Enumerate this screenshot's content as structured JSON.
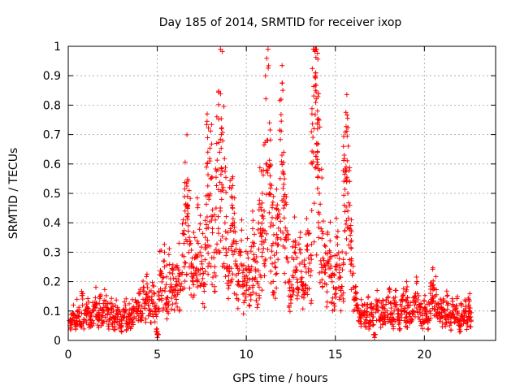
{
  "chart_data": {
    "type": "scatter",
    "title": "Day 185 of 2014, SRMTID for receiver ixop",
    "xlabel": "GPS time / hours",
    "ylabel": "SRMTID / TECUs",
    "xlim": [
      0,
      24
    ],
    "ylim": [
      0,
      1
    ],
    "xticks": [
      0,
      5,
      10,
      15,
      20
    ],
    "yticks": [
      0,
      0.1,
      0.2,
      0.3,
      0.4,
      0.5,
      0.6,
      0.7,
      0.8,
      0.9,
      1
    ],
    "grid": true,
    "marker": "plus",
    "color": "#ff0000",
    "series": [
      {
        "name": "SRMTID",
        "points": [
          [
            0.1,
            0.05
          ],
          [
            0.2,
            0.07
          ],
          [
            0.3,
            0.09
          ],
          [
            0.4,
            0.06
          ],
          [
            0.5,
            0.1
          ],
          [
            0.6,
            0.08
          ],
          [
            0.7,
            0.05
          ],
          [
            0.8,
            0.12
          ],
          [
            0.9,
            0.07
          ],
          [
            1.0,
            0.09
          ],
          [
            1.1,
            0.11
          ],
          [
            1.2,
            0.08
          ],
          [
            1.3,
            0.06
          ],
          [
            1.4,
            0.1
          ],
          [
            1.5,
            0.13
          ],
          [
            1.6,
            0.09
          ],
          [
            1.7,
            0.07
          ],
          [
            1.8,
            0.11
          ],
          [
            1.9,
            0.08
          ],
          [
            2.0,
            0.1
          ],
          [
            2.1,
            0.12
          ],
          [
            2.2,
            0.09
          ],
          [
            2.3,
            0.07
          ],
          [
            2.4,
            0.11
          ],
          [
            2.5,
            0.08
          ],
          [
            2.6,
            0.06
          ],
          [
            2.7,
            0.1
          ],
          [
            2.8,
            0.09
          ],
          [
            2.9,
            0.07
          ],
          [
            3.0,
            0.05
          ],
          [
            3.1,
            0.08
          ],
          [
            3.2,
            0.1
          ],
          [
            3.3,
            0.06
          ],
          [
            3.4,
            0.09
          ],
          [
            3.5,
            0.07
          ],
          [
            3.6,
            0.11
          ],
          [
            3.7,
            0.08
          ],
          [
            3.8,
            0.13
          ],
          [
            3.9,
            0.1
          ],
          [
            4.0,
            0.12
          ],
          [
            4.1,
            0.09
          ],
          [
            4.2,
            0.14
          ],
          [
            4.3,
            0.11
          ],
          [
            4.4,
            0.16
          ],
          [
            4.5,
            0.12
          ],
          [
            4.6,
            0.1
          ],
          [
            4.7,
            0.15
          ],
          [
            4.8,
            0.13
          ],
          [
            4.9,
            0.11
          ],
          [
            5.0,
            0.01
          ],
          [
            5.0,
            0.03
          ],
          [
            5.1,
            0.14
          ],
          [
            5.2,
            0.22
          ],
          [
            5.3,
            0.17
          ],
          [
            5.4,
            0.25
          ],
          [
            5.5,
            0.19
          ],
          [
            5.6,
            0.12
          ],
          [
            5.7,
            0.23
          ],
          [
            5.8,
            0.18
          ],
          [
            5.9,
            0.21
          ],
          [
            6.0,
            0.15
          ],
          [
            6.1,
            0.2
          ],
          [
            6.2,
            0.24
          ],
          [
            6.3,
            0.17
          ],
          [
            6.4,
            0.29
          ],
          [
            6.5,
            0.33
          ],
          [
            6.6,
            0.4
          ],
          [
            6.7,
            0.46
          ],
          [
            6.8,
            0.35
          ],
          [
            6.9,
            0.25
          ],
          [
            7.0,
            0.2
          ],
          [
            7.1,
            0.28
          ],
          [
            7.2,
            0.22
          ],
          [
            7.3,
            0.33
          ],
          [
            7.4,
            0.3
          ],
          [
            7.5,
            0.26
          ],
          [
            7.6,
            0.19
          ],
          [
            7.7,
            0.35
          ],
          [
            7.8,
            0.42
          ],
          [
            7.9,
            0.48
          ],
          [
            8.0,
            0.55
          ],
          [
            8.1,
            0.38
          ],
          [
            8.2,
            0.3
          ],
          [
            8.3,
            0.45
          ],
          [
            8.4,
            0.58
          ],
          [
            8.5,
            0.64
          ],
          [
            8.6,
            0.7
          ],
          [
            8.7,
            0.52
          ],
          [
            8.8,
            0.4
          ],
          [
            8.9,
            0.3
          ],
          [
            9.0,
            0.22
          ],
          [
            9.1,
            0.38
          ],
          [
            9.2,
            0.46
          ],
          [
            9.3,
            0.34
          ],
          [
            9.4,
            0.27
          ],
          [
            9.5,
            0.19
          ],
          [
            9.6,
            0.24
          ],
          [
            9.7,
            0.3
          ],
          [
            9.8,
            0.2
          ],
          [
            9.9,
            0.16
          ],
          [
            10.0,
            0.22
          ],
          [
            10.1,
            0.28
          ],
          [
            10.2,
            0.18
          ],
          [
            10.3,
            0.25
          ],
          [
            10.4,
            0.32
          ],
          [
            10.5,
            0.27
          ],
          [
            10.6,
            0.2
          ],
          [
            10.7,
            0.31
          ],
          [
            10.8,
            0.38
          ],
          [
            10.9,
            0.3
          ],
          [
            11.0,
            0.44
          ],
          [
            11.1,
            0.6
          ],
          [
            11.2,
            0.68
          ],
          [
            11.3,
            0.5
          ],
          [
            11.4,
            0.4
          ],
          [
            11.5,
            0.33
          ],
          [
            11.6,
            0.25
          ],
          [
            11.7,
            0.36
          ],
          [
            11.8,
            0.42
          ],
          [
            11.9,
            0.55
          ],
          [
            12.0,
            0.63
          ],
          [
            12.1,
            0.45
          ],
          [
            12.2,
            0.35
          ],
          [
            12.3,
            0.28
          ],
          [
            12.4,
            0.2
          ],
          [
            12.5,
            0.15
          ],
          [
            12.6,
            0.22
          ],
          [
            12.7,
            0.3
          ],
          [
            12.8,
            0.24
          ],
          [
            12.9,
            0.18
          ],
          [
            13.0,
            0.26
          ],
          [
            13.1,
            0.2
          ],
          [
            13.2,
            0.17
          ],
          [
            13.3,
            0.25
          ],
          [
            13.4,
            0.32
          ],
          [
            13.5,
            0.28
          ],
          [
            13.6,
            0.22
          ],
          [
            13.7,
            0.6
          ],
          [
            13.8,
            0.72
          ],
          [
            13.9,
            0.85
          ],
          [
            14.0,
            0.64
          ],
          [
            14.1,
            0.5
          ],
          [
            14.2,
            0.38
          ],
          [
            14.3,
            0.28
          ],
          [
            14.4,
            0.23
          ],
          [
            14.5,
            0.19
          ],
          [
            14.6,
            0.26
          ],
          [
            14.7,
            0.3
          ],
          [
            14.8,
            0.22
          ],
          [
            14.9,
            0.18
          ],
          [
            15.0,
            0.25
          ],
          [
            15.1,
            0.29
          ],
          [
            15.2,
            0.21
          ],
          [
            15.3,
            0.17
          ],
          [
            15.4,
            0.24
          ],
          [
            15.5,
            0.46
          ],
          [
            15.6,
            0.55
          ],
          [
            15.7,
            0.5
          ],
          [
            15.8,
            0.38
          ],
          [
            15.9,
            0.26
          ],
          [
            16.0,
            0.18
          ],
          [
            16.1,
            0.14
          ],
          [
            16.2,
            0.12
          ],
          [
            16.3,
            0.1
          ],
          [
            16.4,
            0.08
          ],
          [
            16.5,
            0.12
          ],
          [
            16.6,
            0.09
          ],
          [
            16.7,
            0.07
          ],
          [
            16.8,
            0.11
          ],
          [
            16.9,
            0.06
          ],
          [
            17.0,
            0.09
          ],
          [
            17.1,
            0.08
          ],
          [
            17.2,
            0.01
          ],
          [
            17.3,
            0.12
          ],
          [
            17.4,
            0.1
          ],
          [
            17.5,
            0.07
          ],
          [
            17.6,
            0.09
          ],
          [
            17.7,
            0.11
          ],
          [
            17.8,
            0.08
          ],
          [
            17.9,
            0.1
          ],
          [
            18.0,
            0.13
          ],
          [
            18.1,
            0.09
          ],
          [
            18.2,
            0.07
          ],
          [
            18.3,
            0.1
          ],
          [
            18.4,
            0.12
          ],
          [
            18.5,
            0.08
          ],
          [
            18.6,
            0.06
          ],
          [
            18.7,
            0.1
          ],
          [
            18.8,
            0.14
          ],
          [
            18.9,
            0.11
          ],
          [
            19.0,
            0.08
          ],
          [
            19.1,
            0.12
          ],
          [
            19.2,
            0.09
          ],
          [
            19.3,
            0.07
          ],
          [
            19.4,
            0.1
          ],
          [
            19.5,
            0.13
          ],
          [
            19.6,
            0.16
          ],
          [
            19.7,
            0.12
          ],
          [
            19.8,
            0.09
          ],
          [
            19.9,
            0.07
          ],
          [
            20.0,
            0.11
          ],
          [
            20.1,
            0.09
          ],
          [
            20.2,
            0.06
          ],
          [
            20.3,
            0.1
          ],
          [
            20.4,
            0.14
          ],
          [
            20.5,
            0.18
          ],
          [
            20.6,
            0.15
          ],
          [
            20.7,
            0.12
          ],
          [
            20.8,
            0.09
          ],
          [
            20.9,
            0.11
          ],
          [
            21.0,
            0.08
          ],
          [
            21.1,
            0.1
          ],
          [
            21.2,
            0.07
          ],
          [
            21.3,
            0.12
          ],
          [
            21.4,
            0.09
          ],
          [
            21.5,
            0.06
          ],
          [
            21.6,
            0.1
          ],
          [
            21.7,
            0.08
          ],
          [
            21.8,
            0.11
          ],
          [
            21.9,
            0.07
          ],
          [
            22.0,
            0.05
          ],
          [
            22.1,
            0.09
          ],
          [
            22.2,
            0.07
          ],
          [
            22.3,
            0.1
          ],
          [
            22.4,
            0.06
          ],
          [
            22.5,
            0.12
          ],
          [
            22.6,
            0.08
          ]
        ],
        "peaks": [
          [
            7.8,
            0.77
          ],
          [
            6.7,
            0.49
          ],
          [
            8.6,
            0.72
          ],
          [
            10.9,
            0.5
          ],
          [
            11.3,
            0.74
          ],
          [
            12.1,
            0.64
          ],
          [
            13.9,
            0.91
          ],
          [
            13.9,
            0.9
          ],
          [
            14.0,
            0.78
          ],
          [
            14.0,
            0.74
          ],
          [
            15.5,
            0.63
          ],
          [
            15.6,
            0.59
          ],
          [
            15.9,
            0.41
          ],
          [
            9.2,
            0.55
          ],
          [
            19.0,
            0.2
          ],
          [
            20.5,
            0.19
          ],
          [
            22.5,
            0.14
          ]
        ]
      }
    ]
  }
}
